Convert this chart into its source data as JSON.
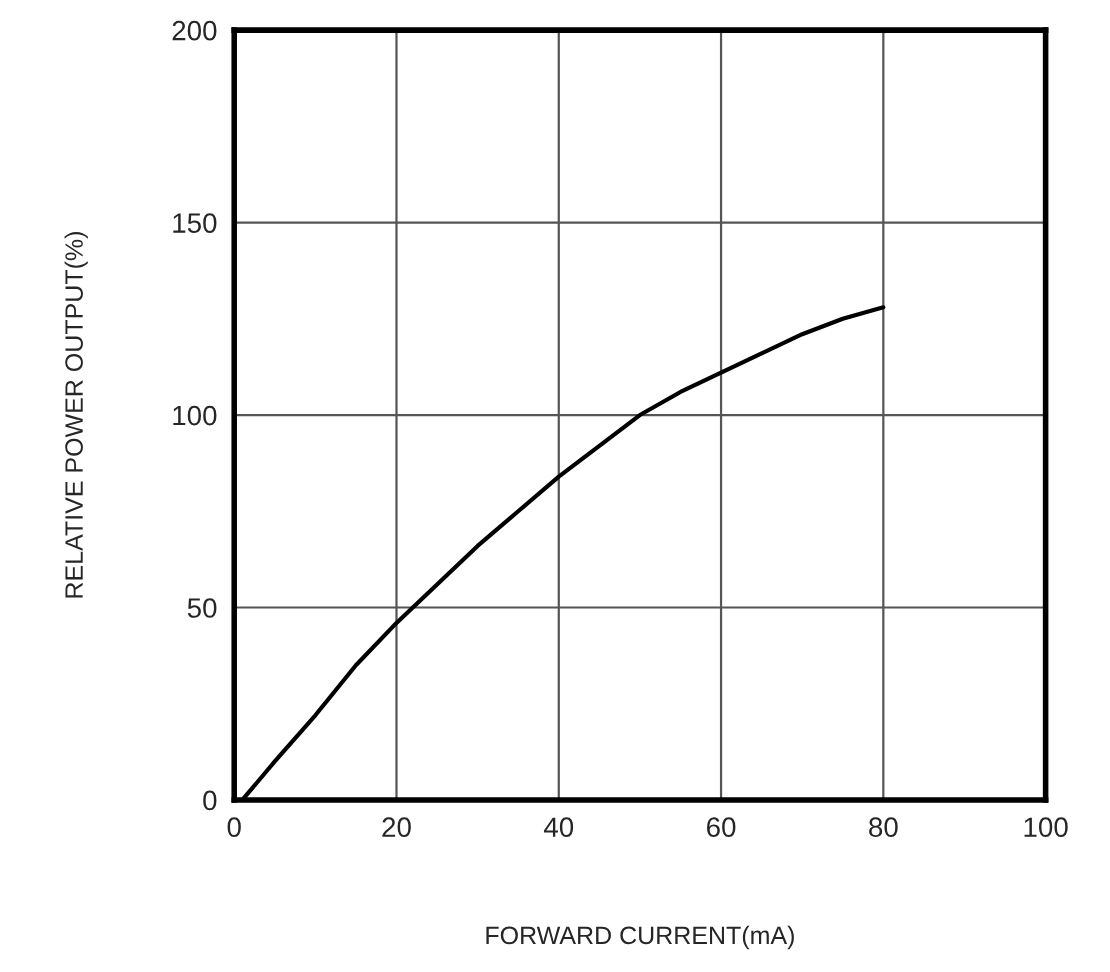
{
  "chart_data": {
    "type": "line",
    "xlabel": "FORWARD CURRENT(mA)",
    "ylabel": "RELATIVE POWER OUTPUT(%)",
    "x": [
      1,
      5,
      10,
      15,
      20,
      25,
      30,
      35,
      40,
      45,
      50,
      55,
      60,
      65,
      70,
      75,
      80
    ],
    "series": [
      {
        "color": "#000000",
        "values": [
          0,
          10,
          22,
          35,
          46,
          56,
          66,
          75,
          84,
          92,
          100,
          106,
          111,
          116,
          121,
          125,
          128
        ]
      }
    ],
    "xlim": [
      0,
      100
    ],
    "ylim": [
      0,
      200
    ],
    "xticks": [
      0,
      20,
      40,
      60,
      80,
      100
    ],
    "yticks": [
      0,
      50,
      100,
      150,
      200
    ],
    "grid": true,
    "marker": "none",
    "line_style": "solid"
  }
}
